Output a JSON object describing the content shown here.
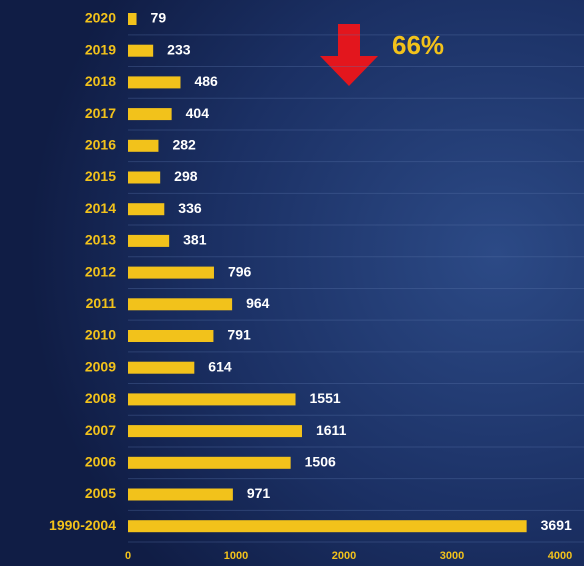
{
  "chart_data": {
    "type": "bar",
    "orientation": "horizontal",
    "categories": [
      "2020",
      "2019",
      "2018",
      "2017",
      "2016",
      "2015",
      "2014",
      "2013",
      "2012",
      "2011",
      "2010",
      "2009",
      "2008",
      "2007",
      "2006",
      "2005",
      "1990-2004"
    ],
    "values": [
      79,
      233,
      486,
      404,
      282,
      298,
      336,
      381,
      796,
      964,
      791,
      614,
      1551,
      1611,
      1506,
      971,
      3691
    ],
    "color": "#f2c21b",
    "xlim": [
      0,
      4000
    ],
    "xticks": [
      0,
      1000,
      2000,
      3000,
      4000
    ],
    "annotation": "66%",
    "grid": true
  }
}
